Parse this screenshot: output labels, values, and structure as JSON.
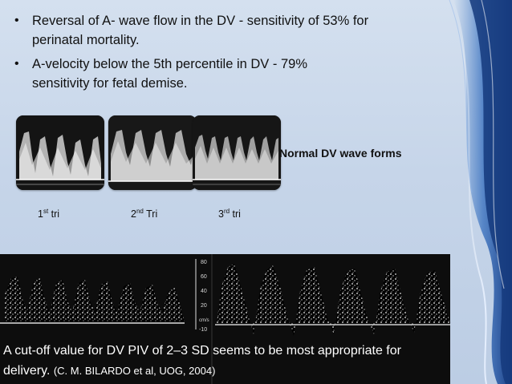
{
  "slide": {
    "bullets": [
      {
        "line1": "Reversal of A- wave flow in the DV - sensitivity of 53%  for",
        "line2": "perinatal mortality."
      },
      {
        "line1": "A-velocity below the 5th percentile in DV - 79%",
        "line2": "sensitivity for fetal demise."
      }
    ],
    "bullet_glyph": "•",
    "normal_label": "Normal DV wave forms",
    "trimesters": [
      {
        "num": "1",
        "sup": "st",
        "word": " tri"
      },
      {
        "num": "2",
        "sup": "nd",
        "word": "  Tri"
      },
      {
        "num": "3",
        "sup": "rd",
        "word": " tri"
      }
    ],
    "doppler_scale": [
      "80",
      "60",
      "40",
      "20",
      "cm/s",
      "-10"
    ],
    "caption_main": "A cut-off value for DV PIV of 2–3 SD seems to be most appropriate for delivery.",
    "caption_cite": "(C. M. BILARDO et al, UOG, 2004)",
    "colors": {
      "accent_blue": "#1f5fae",
      "text": "#111111",
      "caption_bg": "#0d0d0d"
    }
  }
}
